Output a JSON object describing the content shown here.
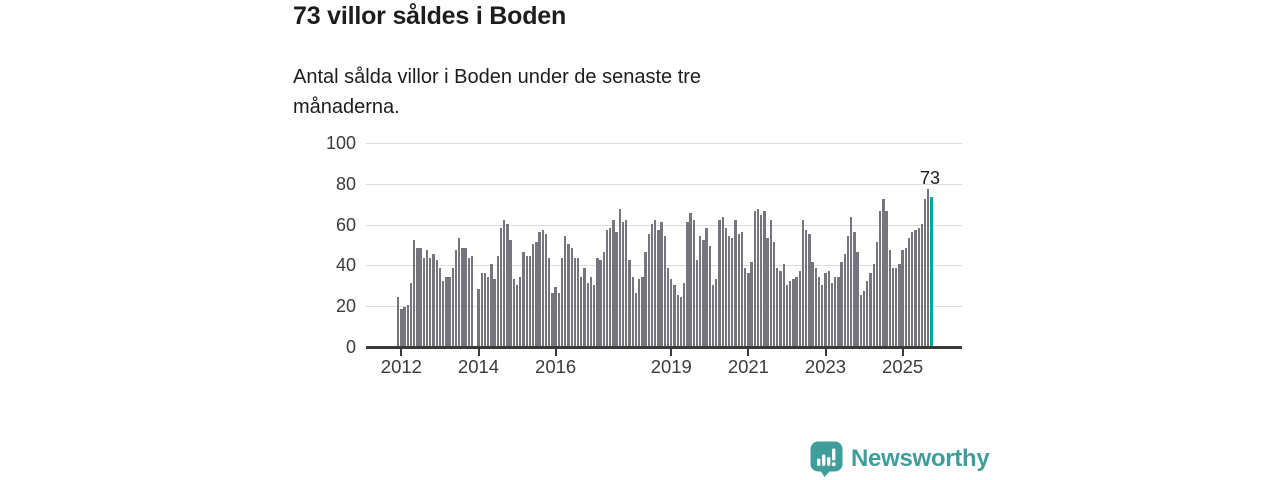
{
  "header": {
    "title": "73 villor såldes i Boden",
    "subtitle": "Antal sålda villor i Boden under de senaste tre månaderna."
  },
  "chart_data": {
    "type": "bar",
    "title": "73 villor såldes i Boden",
    "xlabel": "",
    "ylabel": "",
    "ylim": [
      0,
      100
    ],
    "y_ticks": [
      0,
      20,
      40,
      60,
      80,
      100
    ],
    "x_tick_years": [
      2012,
      2014,
      2016,
      2019,
      2021,
      2023,
      2025
    ],
    "frequency": "monthly",
    "start": "2011-12",
    "grid": "horizontal",
    "bar_color": "#75757d",
    "values": [
      24,
      18,
      19,
      20,
      31,
      52,
      48,
      48,
      43,
      47,
      43,
      45,
      42,
      38,
      32,
      34,
      34,
      38,
      47,
      53,
      48,
      48,
      43,
      44,
      0,
      28,
      36,
      36,
      34,
      40,
      33,
      44,
      58,
      62,
      60,
      52,
      33,
      30,
      34,
      46,
      44,
      44,
      50,
      51,
      56,
      57,
      55,
      43,
      26,
      29,
      26,
      43,
      54,
      50,
      48,
      43,
      43,
      34,
      38,
      31,
      34,
      30,
      43,
      42,
      46,
      57,
      58,
      62,
      56,
      67,
      61,
      62,
      42,
      34,
      26,
      33,
      34,
      46,
      55,
      60,
      62,
      57,
      61,
      54,
      38,
      33,
      30,
      25,
      24,
      31,
      61,
      65,
      62,
      42,
      54,
      52,
      58,
      49,
      30,
      33,
      62,
      63,
      58,
      54,
      53,
      62,
      55,
      56,
      38,
      36,
      41,
      66,
      67,
      64,
      66,
      53,
      62,
      51,
      38,
      37,
      40,
      30,
      32,
      33,
      34,
      37,
      62,
      57,
      55,
      41,
      38,
      34,
      30,
      36,
      37,
      31,
      34,
      34,
      41,
      45,
      54,
      63,
      56,
      46,
      25,
      27,
      32,
      36,
      40,
      51,
      66,
      72,
      66,
      47,
      38,
      38,
      40,
      47,
      48,
      53,
      56,
      57,
      58,
      60,
      72,
      77,
      73
    ],
    "highlight": {
      "index": 166,
      "label": "73",
      "color": "#00a5a5"
    }
  },
  "branding": {
    "name": "Newsworthy",
    "color": "#3f9e9b",
    "icon": "newsworthy-speech-bubble-bar-chart-icon"
  }
}
